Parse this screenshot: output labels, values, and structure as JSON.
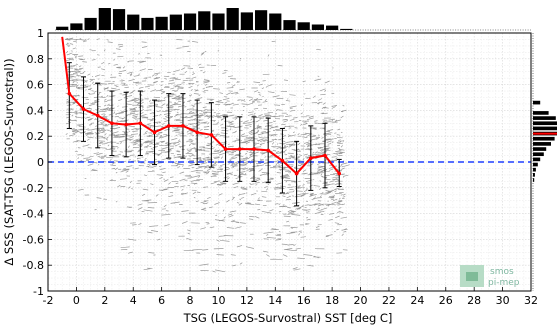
{
  "chart_data": {
    "type": "line",
    "xlabel": "TSG (LEGOS-Survostral) SST [deg C]",
    "ylabel": "Δ SSS (SAT-TSG (LEGOS-Survostral))",
    "xlim": [
      -2,
      32
    ],
    "ylim": [
      -1,
      1
    ],
    "x_ticks": [
      -2,
      0,
      2,
      4,
      6,
      8,
      10,
      12,
      14,
      16,
      18,
      20,
      22,
      24,
      26,
      28,
      30,
      32
    ],
    "y_ticks": [
      -1,
      -0.8,
      -0.6,
      -0.4,
      -0.2,
      0,
      0.2,
      0.4,
      0.6,
      0.8,
      1
    ],
    "grid": true,
    "reference_line": {
      "y": 0,
      "color": "#1f3fff",
      "style": "dashed"
    },
    "series": [
      {
        "color": "#ff0000",
        "x": [
          -1,
          -0.5,
          0.5,
          1.5,
          2.5,
          3.5,
          4.5,
          5.5,
          6.5,
          7.5,
          8.5,
          9.5,
          10.5,
          11.5,
          12.5,
          13.5,
          14.5,
          15.5,
          16.5,
          17.5,
          18.5
        ],
        "y": [
          0.97,
          0.53,
          0.41,
          0.36,
          0.3,
          0.29,
          0.3,
          0.23,
          0.28,
          0.28,
          0.23,
          0.21,
          0.1,
          0.1,
          0.1,
          0.09,
          0.01,
          -0.09,
          0.03,
          0.05,
          -0.09
        ]
      }
    ],
    "error_bars": [
      {
        "x": -0.5,
        "low": 0.26,
        "high": 0.77
      },
      {
        "x": 0.5,
        "low": 0.16,
        "high": 0.66
      },
      {
        "x": 1.5,
        "low": 0.11,
        "high": 0.61
      },
      {
        "x": 2.5,
        "low": 0.05,
        "high": 0.55
      },
      {
        "x": 3.5,
        "low": 0.04,
        "high": 0.54
      },
      {
        "x": 4.5,
        "low": 0.05,
        "high": 0.55
      },
      {
        "x": 5.5,
        "low": -0.02,
        "high": 0.48
      },
      {
        "x": 6.5,
        "low": 0.03,
        "high": 0.53
      },
      {
        "x": 7.5,
        "low": 0.03,
        "high": 0.53
      },
      {
        "x": 8.5,
        "low": -0.02,
        "high": 0.48
      },
      {
        "x": 9.5,
        "low": -0.04,
        "high": 0.46
      },
      {
        "x": 10.5,
        "low": -0.15,
        "high": 0.35
      },
      {
        "x": 11.5,
        "low": -0.15,
        "high": 0.35
      },
      {
        "x": 12.5,
        "low": -0.15,
        "high": 0.35
      },
      {
        "x": 13.5,
        "low": -0.16,
        "high": 0.34
      },
      {
        "x": 14.5,
        "low": -0.24,
        "high": 0.26
      },
      {
        "x": 15.5,
        "low": -0.34,
        "high": 0.16
      },
      {
        "x": 16.5,
        "low": -0.22,
        "high": 0.28
      },
      {
        "x": 17.5,
        "low": -0.2,
        "high": 0.3
      },
      {
        "x": 18.5,
        "low": -0.19,
        "high": 0.02
      }
    ],
    "top_histogram": {
      "x": [
        -1,
        0,
        1,
        2,
        3,
        4,
        5,
        6,
        7,
        8,
        9,
        10,
        11,
        12,
        13,
        14,
        15,
        16,
        17,
        18,
        19
      ],
      "counts": [
        0.15,
        0.3,
        0.55,
        1.0,
        0.95,
        0.7,
        0.55,
        0.6,
        0.7,
        0.75,
        0.85,
        0.75,
        1.0,
        0.8,
        0.9,
        0.75,
        0.45,
        0.35,
        0.25,
        0.2,
        0.05
      ]
    },
    "right_histogram": {
      "y": [
        0.46,
        0.38,
        0.34,
        0.3,
        0.26,
        0.22,
        0.18,
        0.14,
        0.1,
        0.06,
        0.02,
        -0.02,
        -0.06,
        -0.1,
        -0.14
      ],
      "counts": [
        0.3,
        0.65,
        0.95,
        1.0,
        1.0,
        1.0,
        0.9,
        0.75,
        0.55,
        0.45,
        0.3,
        0.2,
        0.12,
        0.08,
        0.05
      ],
      "mean_line_y": 0.22
    }
  },
  "colors": {
    "mean_line": "#ff0000",
    "error_bar": "#000000",
    "scatter": "#888888",
    "zero_line": "#1f3fff",
    "logo": "#8fc5a8"
  },
  "logo": {
    "line1": "smos",
    "line2": "pi-mep"
  }
}
